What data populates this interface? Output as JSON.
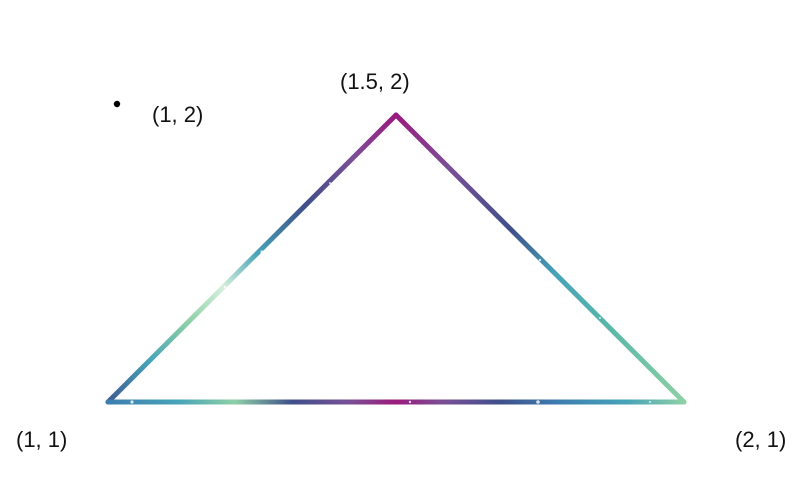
{
  "labels": {
    "apex": "(1.5, 2)",
    "point": "(1, 2)",
    "bottom_left": "(1, 1)",
    "bottom_right": "(2, 1)"
  },
  "colors": {
    "magenta": "#9a1a7e",
    "purple": "#7a4f96",
    "navy": "#3f4f8a",
    "teal": "#46a3b8",
    "mint": "#8ed0a6",
    "pale_mint": "#d6efdc",
    "steel_blue": "#3d7db0",
    "dot": "#000000"
  }
}
